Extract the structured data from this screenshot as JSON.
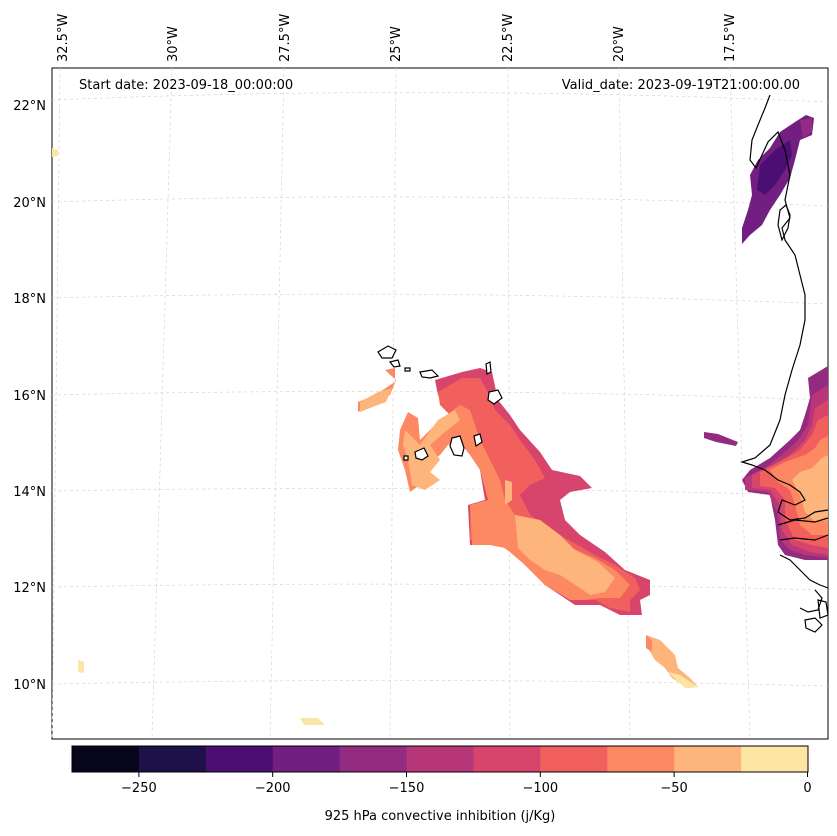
{
  "header": {
    "start_date": "Start date: 2023-09-18_00:00:00",
    "valid_date": "Valid_date: 2023-09-19T21:00:00.00"
  },
  "lon_labels": [
    "32.5°W",
    "30°W",
    "27.5°W",
    "25°W",
    "22.5°W",
    "20°W",
    "17.5°W"
  ],
  "lat_labels": [
    "22°N",
    "20°N",
    "18°N",
    "16°N",
    "14°N",
    "12°N",
    "10°N"
  ],
  "colorbar": {
    "label": "925 hPa convective inhibition (j/Kg)",
    "ticks": [
      "−250",
      "−200",
      "−150",
      "−100",
      "−50",
      "0"
    ],
    "colors": [
      "#07061a",
      "#1e1149",
      "#4b0f73",
      "#721f81",
      "#932b80",
      "#b73779",
      "#d8456c",
      "#f1605d",
      "#fc8961",
      "#feb57c",
      "#fde5a5"
    ]
  },
  "fields": {
    "cape_verde_plume": [
      -25,
      -50,
      -75,
      -100,
      -125
    ],
    "mauritania_patch": [
      -125,
      -150,
      -175,
      -200
    ],
    "senegal_patch": [
      -50,
      -75,
      -100,
      -125,
      -150,
      -175
    ]
  }
}
